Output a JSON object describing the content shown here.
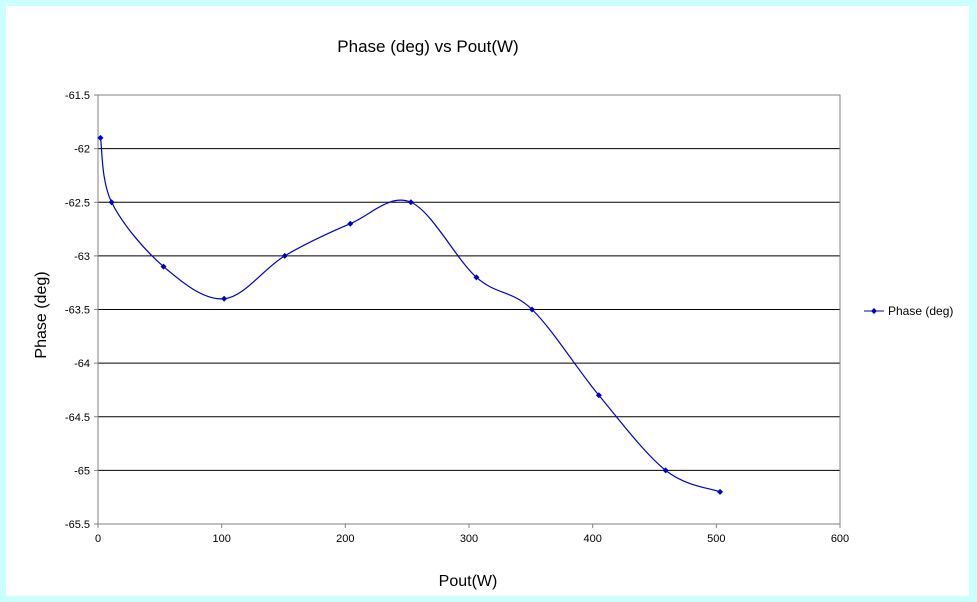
{
  "chart_data": {
    "type": "line",
    "title": "Phase (deg) vs Pout(W)",
    "xlabel": "Pout(W)",
    "ylabel": "Phase (deg)",
    "xlim": [
      0,
      600
    ],
    "ylim": [
      -65.5,
      -61.5
    ],
    "x_ticks": [
      "0",
      "100",
      "200",
      "300",
      "400",
      "500",
      "600"
    ],
    "y_ticks": [
      "-61.5",
      "-62",
      "-62.5",
      "-63",
      "-63.5",
      "-64",
      "-64.5",
      "-65",
      "-65.5"
    ],
    "grid": "horizontal",
    "legend_position": "right",
    "line_style": "smoothed",
    "series": [
      {
        "name": "Phase (deg)",
        "color": "#0000cc",
        "marker": "diamond",
        "x": [
          2,
          11,
          53,
          102,
          151,
          204,
          253,
          306,
          351,
          405,
          459,
          503
        ],
        "y": [
          -61.9,
          -62.5,
          -63.1,
          -63.4,
          -63.0,
          -62.7,
          -62.5,
          -63.2,
          -63.5,
          -64.3,
          -65.0,
          -65.2
        ]
      }
    ]
  }
}
